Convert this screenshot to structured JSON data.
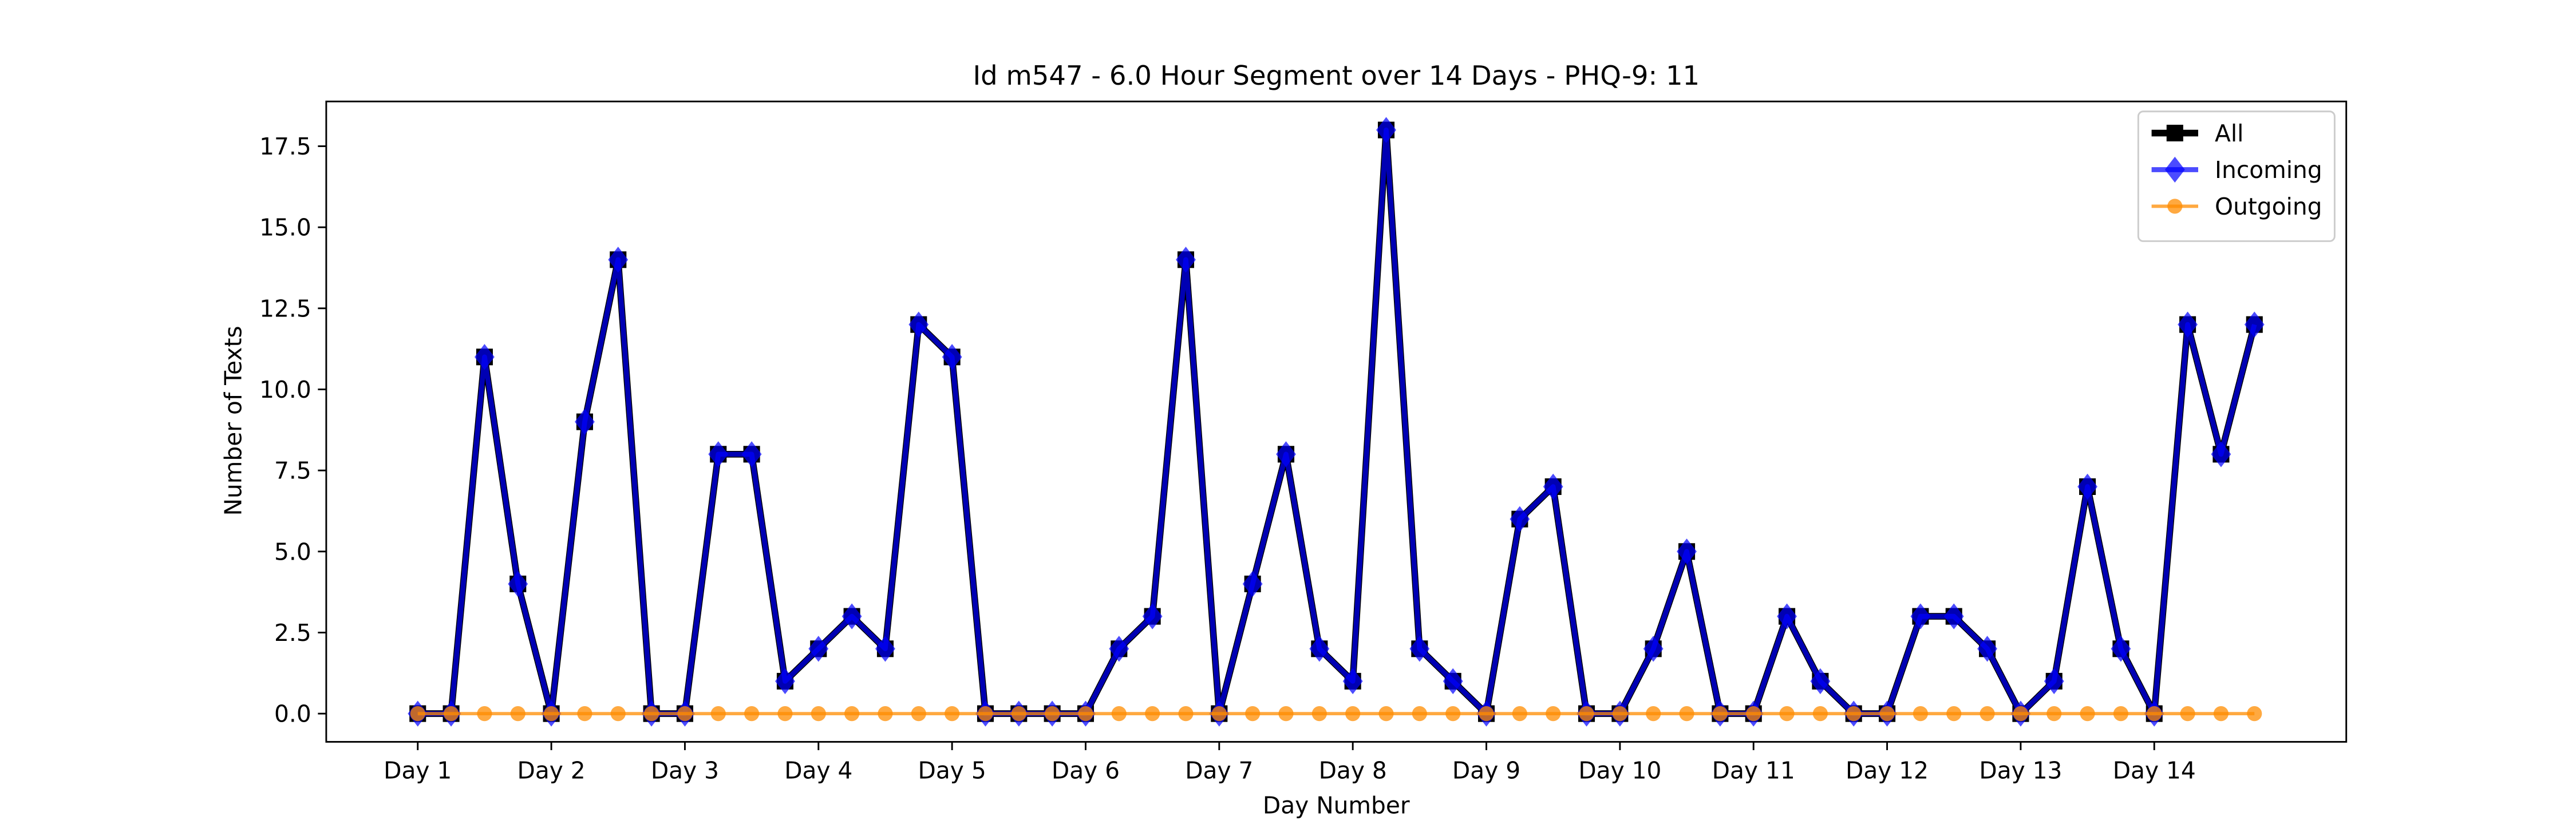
{
  "chart_data": {
    "type": "line",
    "title": "Id m547 - 6.0 Hour Segment over 14 Days - PHQ-9: 11",
    "xlabel": "Day Number",
    "ylabel": "Number of Texts",
    "x": [
      0,
      1,
      2,
      3,
      4,
      5,
      6,
      7,
      8,
      9,
      10,
      11,
      12,
      13,
      14,
      15,
      16,
      17,
      18,
      19,
      20,
      21,
      22,
      23,
      24,
      25,
      26,
      27,
      28,
      29,
      30,
      31,
      32,
      33,
      34,
      35,
      36,
      37,
      38,
      39,
      40,
      41,
      42,
      43,
      44,
      45,
      46,
      47,
      48,
      49,
      50,
      51,
      52,
      53,
      54,
      55
    ],
    "xlim": [
      -2.74,
      57.75
    ],
    "xticks": [
      {
        "value": 0,
        "label": "Day 1"
      },
      {
        "value": 4,
        "label": "Day 2"
      },
      {
        "value": 8,
        "label": "Day 3"
      },
      {
        "value": 12,
        "label": "Day 4"
      },
      {
        "value": 16,
        "label": "Day 5"
      },
      {
        "value": 20,
        "label": "Day 6"
      },
      {
        "value": 24,
        "label": "Day 7"
      },
      {
        "value": 28,
        "label": "Day 8"
      },
      {
        "value": 32,
        "label": "Day 9"
      },
      {
        "value": 36,
        "label": "Day 10"
      },
      {
        "value": 40,
        "label": "Day 11"
      },
      {
        "value": 44,
        "label": "Day 12"
      },
      {
        "value": 48,
        "label": "Day 13"
      },
      {
        "value": 52,
        "label": "Day 14"
      }
    ],
    "ylim": [
      -0.87,
      18.88
    ],
    "yticks": [
      {
        "value": 0,
        "label": "0.0"
      },
      {
        "value": 2.5,
        "label": "2.5"
      },
      {
        "value": 5,
        "label": "5.0"
      },
      {
        "value": 7.5,
        "label": "7.5"
      },
      {
        "value": 10,
        "label": "10.0"
      },
      {
        "value": 12.5,
        "label": "12.5"
      },
      {
        "value": 15,
        "label": "15.0"
      },
      {
        "value": 17.5,
        "label": "17.5"
      }
    ],
    "legend": "upper right",
    "series": [
      {
        "name": "All",
        "color": "#000000",
        "marker": "square",
        "values": [
          0,
          0,
          11,
          4,
          0,
          9,
          14,
          0,
          0,
          8,
          8,
          1,
          2,
          3,
          2,
          12,
          11,
          0,
          0,
          0,
          0,
          2,
          3,
          14,
          0,
          4,
          8,
          2,
          1,
          18,
          2,
          1,
          0,
          6,
          7,
          0,
          0,
          2,
          5,
          0,
          0,
          3,
          1,
          0,
          0,
          3,
          3,
          2,
          0,
          1,
          7,
          2,
          0,
          12,
          8,
          12
        ]
      },
      {
        "name": "Incoming",
        "color": "#0000ff",
        "marker": "diamond",
        "values": [
          0,
          0,
          11,
          4,
          0,
          9,
          14,
          0,
          0,
          8,
          8,
          1,
          2,
          3,
          2,
          12,
          11,
          0,
          0,
          0,
          0,
          2,
          3,
          14,
          0,
          4,
          8,
          2,
          1,
          18,
          2,
          1,
          0,
          6,
          7,
          0,
          0,
          2,
          5,
          0,
          0,
          3,
          1,
          0,
          0,
          3,
          3,
          2,
          0,
          1,
          7,
          2,
          0,
          12,
          8,
          12
        ]
      },
      {
        "name": "Outgoing",
        "color": "#ff8c00",
        "marker": "circle",
        "values": [
          0,
          0,
          0,
          0,
          0,
          0,
          0,
          0,
          0,
          0,
          0,
          0,
          0,
          0,
          0,
          0,
          0,
          0,
          0,
          0,
          0,
          0,
          0,
          0,
          0,
          0,
          0,
          0,
          0,
          0,
          0,
          0,
          0,
          0,
          0,
          0,
          0,
          0,
          0,
          0,
          0,
          0,
          0,
          0,
          0,
          0,
          0,
          0,
          0,
          0,
          0,
          0,
          0,
          0,
          0,
          0
        ]
      }
    ]
  }
}
